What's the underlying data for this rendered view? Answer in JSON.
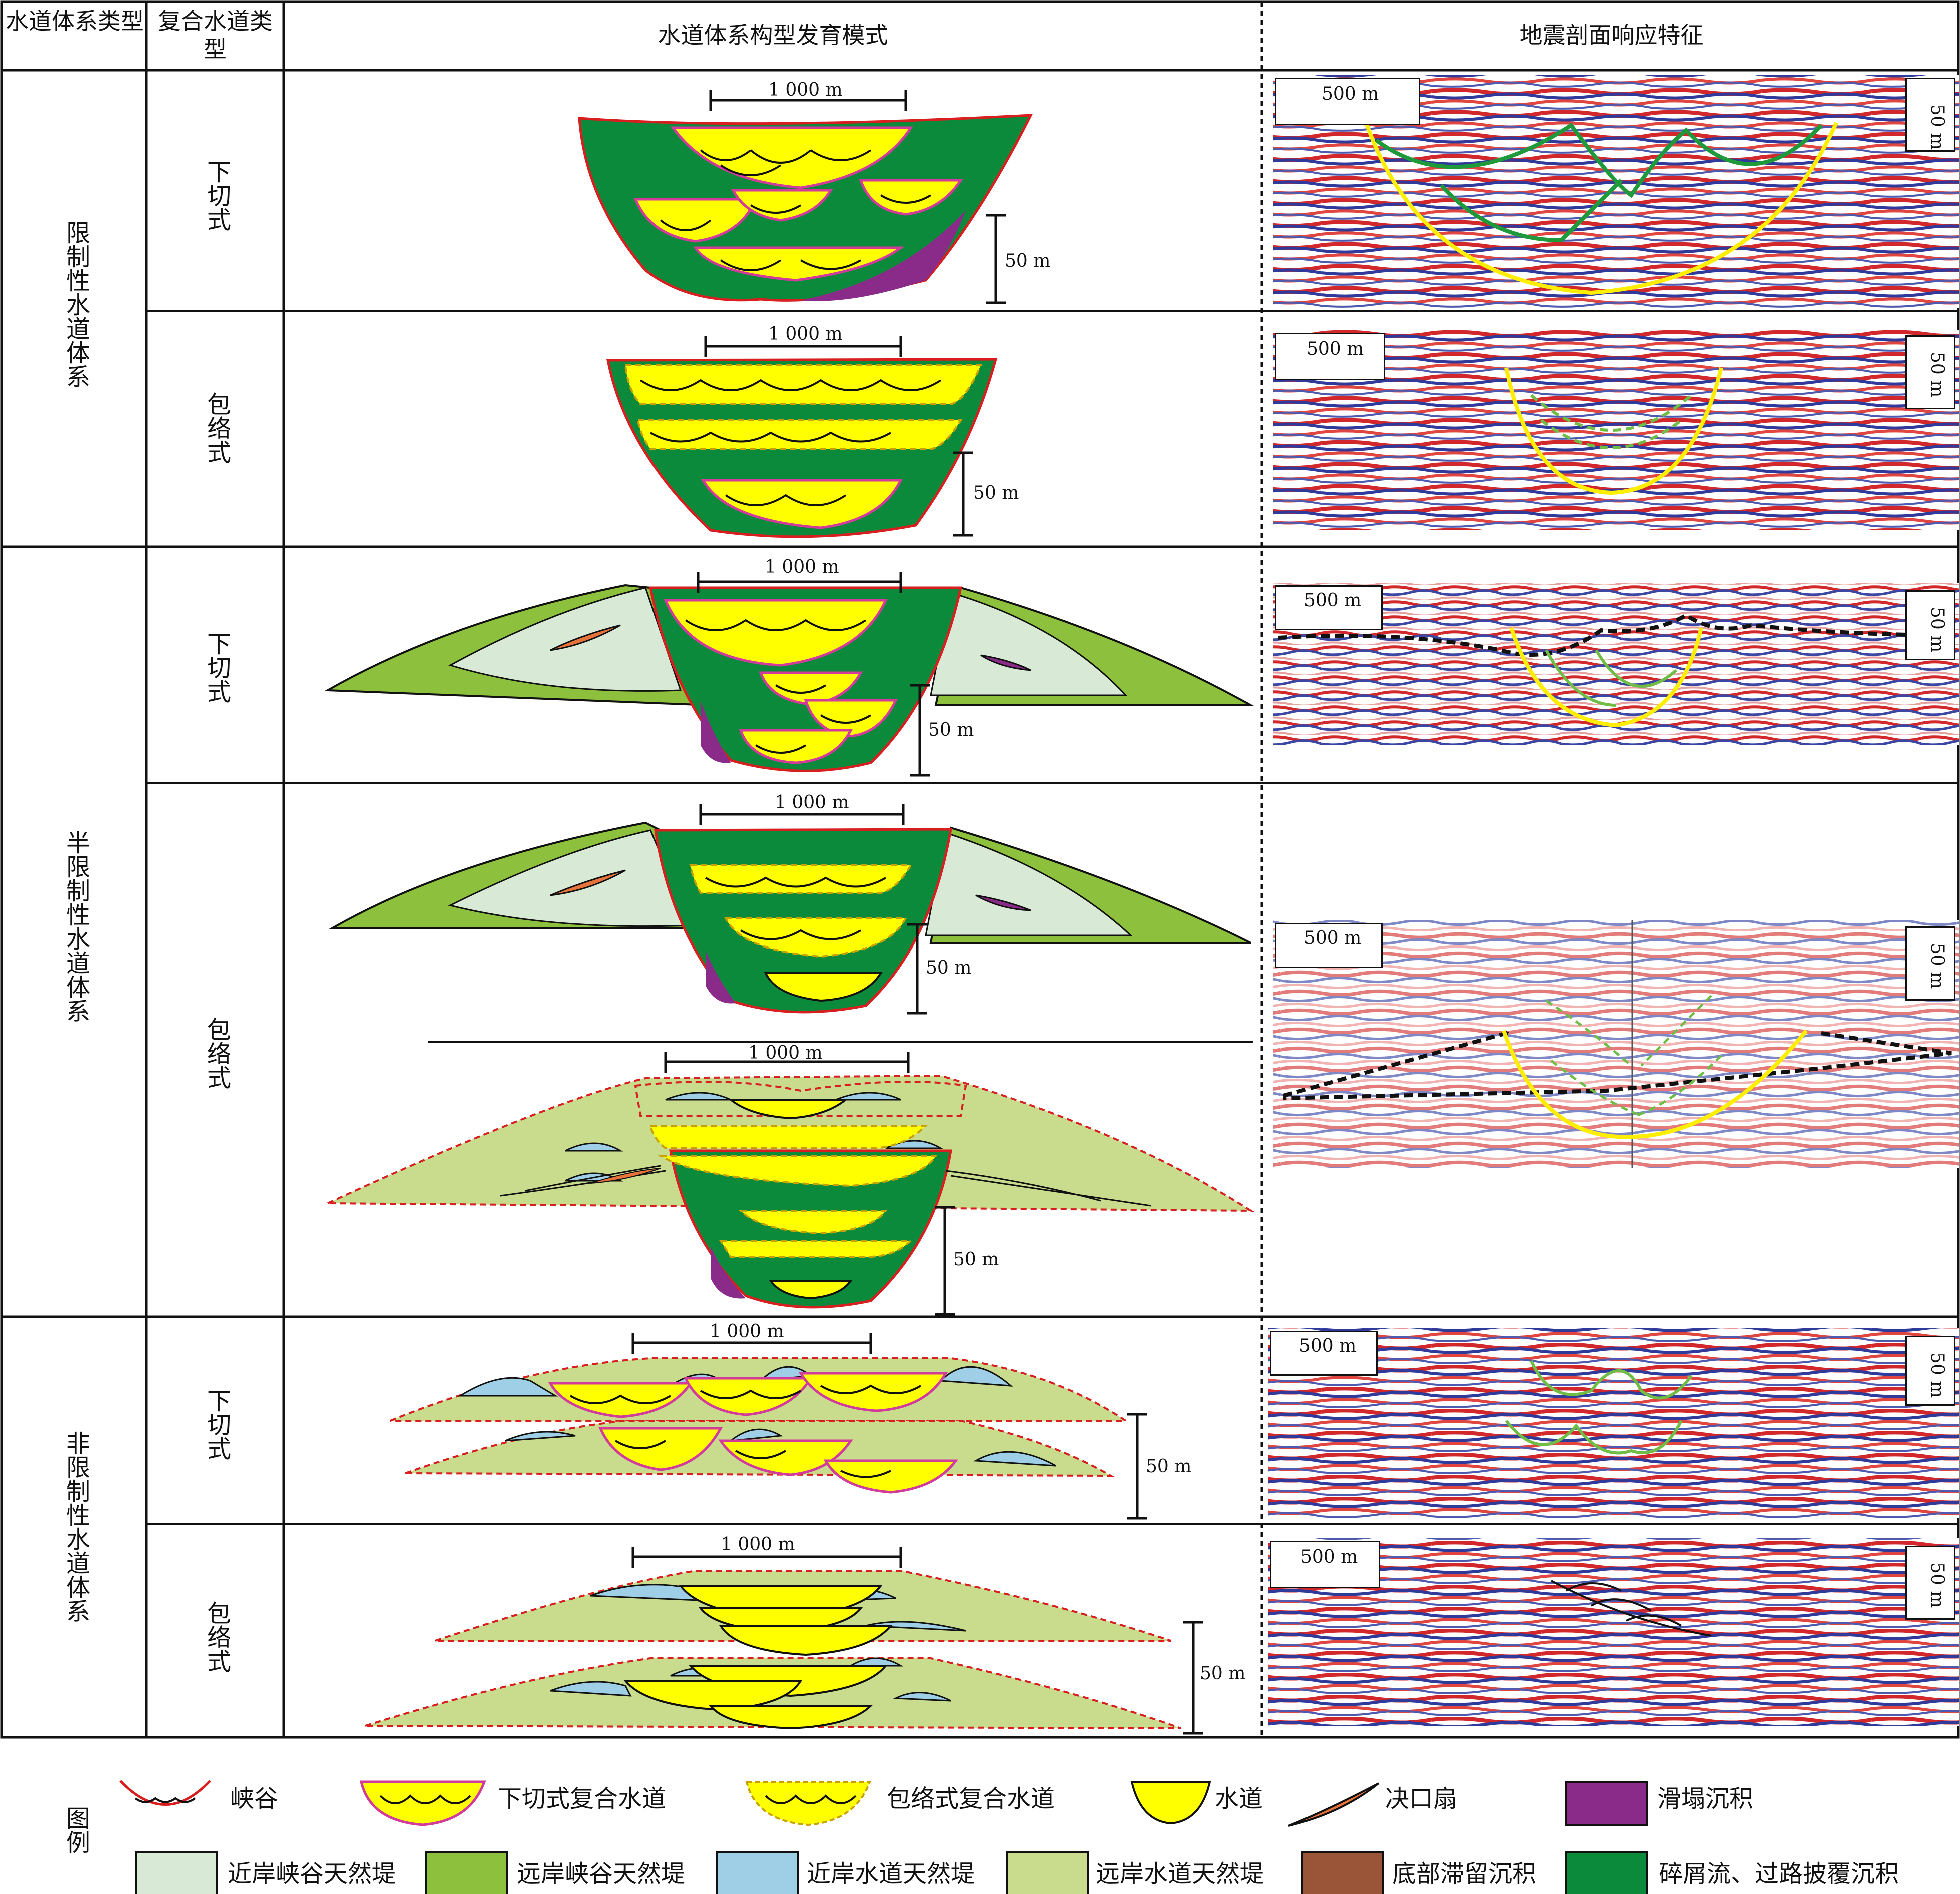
{
  "header": {
    "col1": "水道体系类型",
    "col2": "复合水道类型",
    "col3": "水道体系构型发育模式",
    "col4": "地震剖面响应特征"
  },
  "systems": {
    "restricted": "限制性水道体系",
    "semi_restricted": "半限制性水道体系",
    "unrestricted": "非限制性水道体系"
  },
  "channel_types": {
    "incised": "下切式",
    "enveloping": "包络式"
  },
  "scales": {
    "width_1000": "1 000 m",
    "height_50": "50 m",
    "seismic_500": "500 m",
    "seismic_50": "50 m"
  },
  "legend": {
    "title": "图例",
    "items": [
      {
        "label": "峡谷",
        "icon": "canyon-icon"
      },
      {
        "label": "下切式复合水道",
        "icon": "incised-complex-channel-icon"
      },
      {
        "label": "包络式复合水道",
        "icon": "enveloping-complex-channel-icon"
      },
      {
        "label": "水道",
        "icon": "channel-icon"
      },
      {
        "label": "决口扇",
        "icon": "crevasse-splay-icon"
      },
      {
        "label": "滑塌沉积",
        "icon": "slump-deposit-icon"
      },
      {
        "label": "近岸峡谷天然堤",
        "icon": "proximal-canyon-levee-icon"
      },
      {
        "label": "远岸峡谷天然堤",
        "icon": "distal-canyon-levee-icon"
      },
      {
        "label": "近岸水道天然堤",
        "icon": "proximal-channel-levee-icon"
      },
      {
        "label": "远岸水道天然堤",
        "icon": "distal-channel-levee-icon"
      },
      {
        "label": "底部滞留沉积",
        "icon": "basal-lag-deposit-icon"
      },
      {
        "label": "碎屑流、过路披覆沉积",
        "icon": "debris-flow-drape-icon"
      }
    ]
  },
  "colors": {
    "debris_green": "#0b8a3c",
    "channel_yellow": "#ffff00",
    "slump_purple": "#8a2b8a",
    "proximal_canyon_levee": "#d8ead6",
    "distal_canyon_levee": "#8dc03d",
    "proximal_channel_levee": "#9ecfe6",
    "distal_channel_levee": "#c9dc8e",
    "basal_lag": "#9a5538",
    "crevasse_orange": "#e8733a",
    "canyon_red": "#d81e1e",
    "incised_pink": "#d23a9b"
  }
}
